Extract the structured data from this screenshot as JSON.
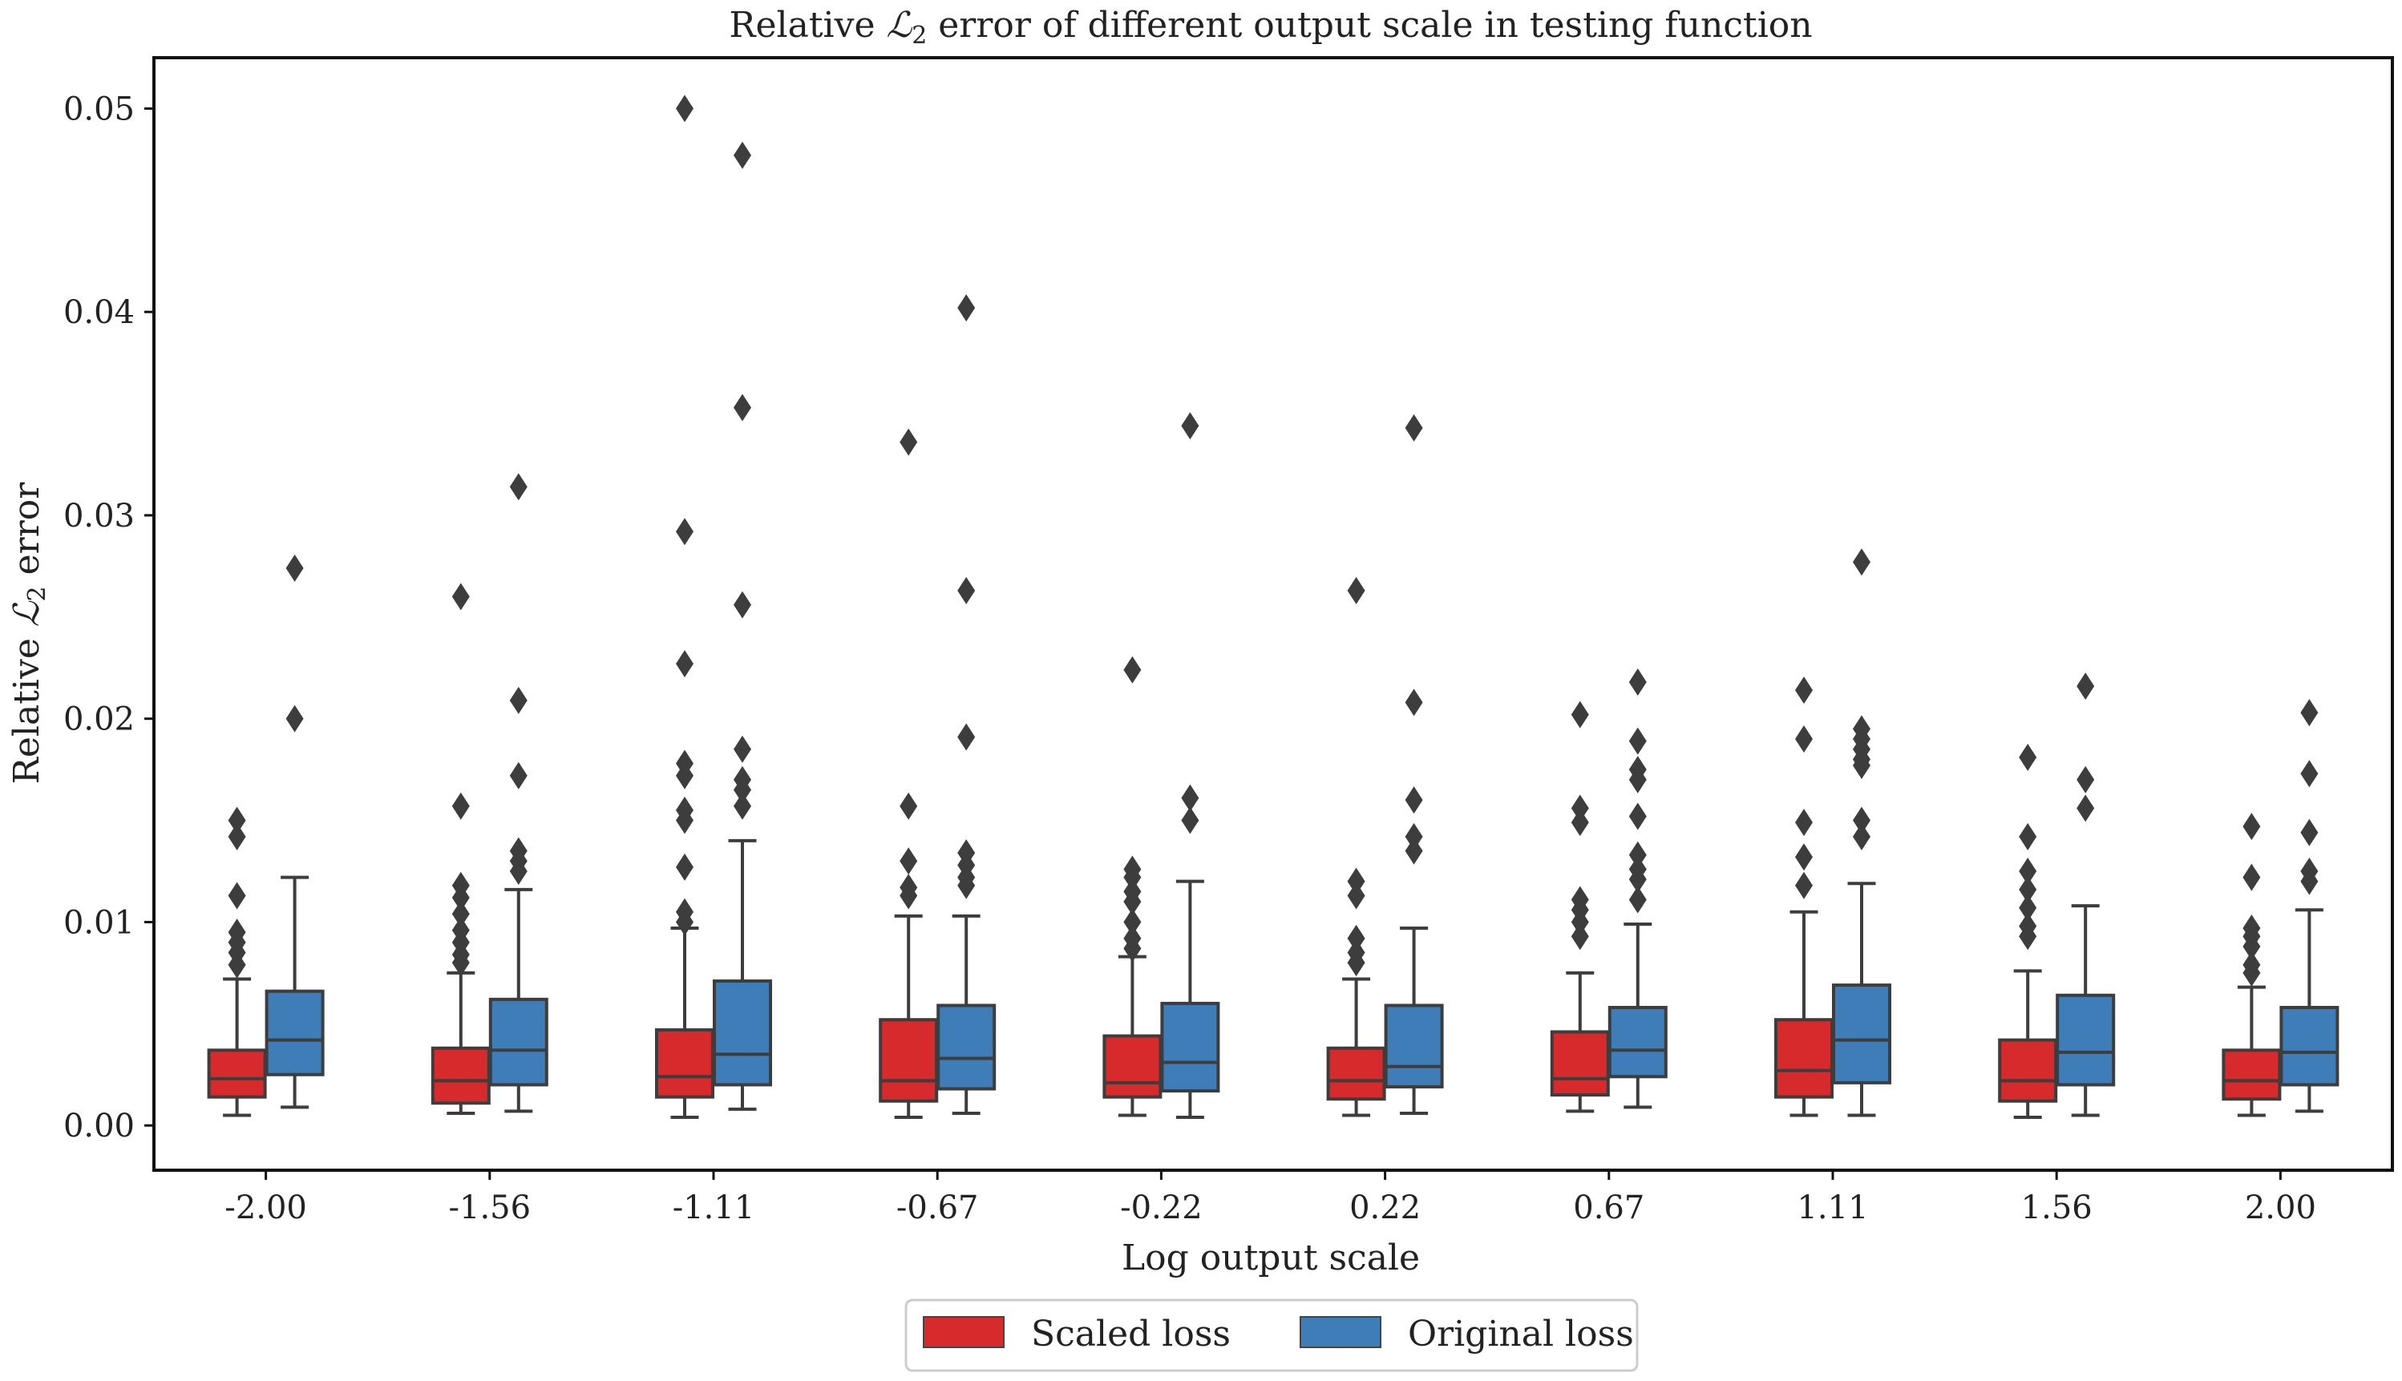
{
  "chart_data": {
    "type": "boxplot",
    "title_prefix": "Relative ",
    "title_script": "ℒ",
    "title_sub": "2",
    "title_suffix": " error of different output scale in testing function",
    "xlabel": "Log output scale",
    "ylabel_prefix": "Relative ",
    "ylabel_script": "ℒ",
    "ylabel_sub": "2",
    "ylabel_suffix": " error",
    "ylim": [
      -0.0022,
      0.0525
    ],
    "yticks": [
      "0.00",
      "0.01",
      "0.02",
      "0.03",
      "0.04",
      "0.05"
    ],
    "ytick_values": [
      0.0,
      0.01,
      0.02,
      0.03,
      0.04,
      0.05
    ],
    "categories": [
      "-2.00",
      "-1.56",
      "-1.11",
      "-0.67",
      "-0.22",
      "0.22",
      "0.67",
      "1.11",
      "1.56",
      "2.00"
    ],
    "grid": false,
    "legend_position": "bottom-center, below plot",
    "series": [
      {
        "name": "Scaled loss",
        "color": "#d62a2d",
        "boxes": [
          {
            "whislo": 0.0005,
            "q1": 0.0014,
            "med": 0.0023,
            "q3": 0.0037,
            "whishi": 0.0072,
            "fliers": [
              0.015,
              0.0142,
              0.0113,
              0.0095,
              0.009,
              0.0085,
              0.0079
            ]
          },
          {
            "whislo": 0.0006,
            "q1": 0.0011,
            "med": 0.0022,
            "q3": 0.0038,
            "whishi": 0.0075,
            "fliers": [
              0.026,
              0.0157,
              0.0118,
              0.0112,
              0.0104,
              0.0096,
              0.009,
              0.0084,
              0.008
            ]
          },
          {
            "whislo": 0.0004,
            "q1": 0.0014,
            "med": 0.0024,
            "q3": 0.0047,
            "whishi": 0.0097,
            "fliers": [
              0.05,
              0.0292,
              0.0227,
              0.0178,
              0.0172,
              0.0155,
              0.015,
              0.0127,
              0.0105,
              0.01
            ]
          },
          {
            "whislo": 0.0004,
            "q1": 0.0012,
            "med": 0.0022,
            "q3": 0.0052,
            "whishi": 0.0103,
            "fliers": [
              0.0336,
              0.0157,
              0.013,
              0.0117,
              0.0113
            ]
          },
          {
            "whislo": 0.0005,
            "q1": 0.0014,
            "med": 0.0021,
            "q3": 0.0044,
            "whishi": 0.0083,
            "fliers": [
              0.0224,
              0.0126,
              0.0122,
              0.0115,
              0.011,
              0.01,
              0.0092,
              0.0087
            ]
          },
          {
            "whislo": 0.0005,
            "q1": 0.0013,
            "med": 0.0022,
            "q3": 0.0038,
            "whishi": 0.0072,
            "fliers": [
              0.0263,
              0.012,
              0.0113,
              0.0092,
              0.0085,
              0.008
            ]
          },
          {
            "whislo": 0.0007,
            "q1": 0.0015,
            "med": 0.0023,
            "q3": 0.0046,
            "whishi": 0.0075,
            "fliers": [
              0.0202,
              0.0156,
              0.0149,
              0.0111,
              0.0106,
              0.01,
              0.0093
            ]
          },
          {
            "whislo": 0.0005,
            "q1": 0.0014,
            "med": 0.0027,
            "q3": 0.0052,
            "whishi": 0.0105,
            "fliers": [
              0.0214,
              0.019,
              0.0149,
              0.0132,
              0.0118
            ]
          },
          {
            "whislo": 0.0004,
            "q1": 0.0012,
            "med": 0.0022,
            "q3": 0.0042,
            "whishi": 0.0076,
            "fliers": [
              0.0181,
              0.0142,
              0.0125,
              0.0116,
              0.0107,
              0.0098,
              0.0093
            ]
          },
          {
            "whislo": 0.0005,
            "q1": 0.0013,
            "med": 0.0022,
            "q3": 0.0037,
            "whishi": 0.0068,
            "fliers": [
              0.0147,
              0.0122,
              0.0097,
              0.0093,
              0.0088,
              0.0079,
              0.0075
            ]
          }
        ]
      },
      {
        "name": "Original loss",
        "color": "#3e7db7",
        "boxes": [
          {
            "whislo": 0.0009,
            "q1": 0.0025,
            "med": 0.0042,
            "q3": 0.0066,
            "whishi": 0.0122,
            "fliers": [
              0.0274,
              0.02
            ]
          },
          {
            "whislo": 0.0007,
            "q1": 0.002,
            "med": 0.0037,
            "q3": 0.0062,
            "whishi": 0.0116,
            "fliers": [
              0.0314,
              0.0209,
              0.0172,
              0.0135,
              0.013,
              0.0125
            ]
          },
          {
            "whislo": 0.0008,
            "q1": 0.002,
            "med": 0.0035,
            "q3": 0.0071,
            "whishi": 0.014,
            "fliers": [
              0.0477,
              0.0353,
              0.0256,
              0.0185,
              0.017,
              0.0165,
              0.0157
            ]
          },
          {
            "whislo": 0.0006,
            "q1": 0.0018,
            "med": 0.0033,
            "q3": 0.0059,
            "whishi": 0.0103,
            "fliers": [
              0.0402,
              0.0263,
              0.0191,
              0.0134,
              0.0128,
              0.0122,
              0.0118
            ]
          },
          {
            "whislo": 0.0004,
            "q1": 0.0017,
            "med": 0.0031,
            "q3": 0.006,
            "whishi": 0.012,
            "fliers": [
              0.0344,
              0.0161,
              0.015
            ]
          },
          {
            "whislo": 0.0006,
            "q1": 0.0019,
            "med": 0.0029,
            "q3": 0.0059,
            "whishi": 0.0097,
            "fliers": [
              0.0343,
              0.0208,
              0.016,
              0.0142,
              0.0135
            ]
          },
          {
            "whislo": 0.0009,
            "q1": 0.0024,
            "med": 0.0037,
            "q3": 0.0058,
            "whishi": 0.0099,
            "fliers": [
              0.0218,
              0.0189,
              0.0175,
              0.017,
              0.0152,
              0.0133,
              0.0126,
              0.0121,
              0.0111
            ]
          },
          {
            "whislo": 0.0005,
            "q1": 0.0021,
            "med": 0.0042,
            "q3": 0.0069,
            "whishi": 0.0119,
            "fliers": [
              0.0277,
              0.0195,
              0.019,
              0.0185,
              0.018,
              0.0177,
              0.015,
              0.0142
            ]
          },
          {
            "whislo": 0.0005,
            "q1": 0.002,
            "med": 0.0036,
            "q3": 0.0064,
            "whishi": 0.0108,
            "fliers": [
              0.0216,
              0.017,
              0.0156
            ]
          },
          {
            "whislo": 0.0007,
            "q1": 0.002,
            "med": 0.0036,
            "q3": 0.0058,
            "whishi": 0.0106,
            "fliers": [
              0.0203,
              0.0173,
              0.0144,
              0.0125,
              0.012
            ]
          }
        ]
      }
    ]
  }
}
